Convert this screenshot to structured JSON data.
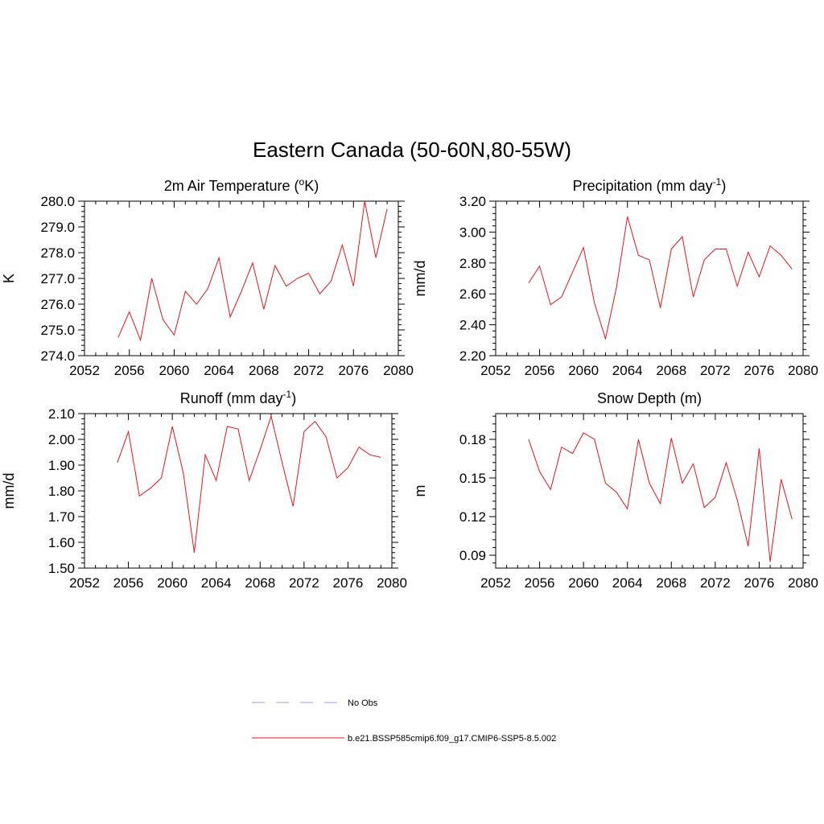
{
  "title": "Eastern Canada (50-60N,80-55W)",
  "line_color": "#e8141b",
  "obs_color": "#9a9af0",
  "legend": {
    "obs_label": "No Obs",
    "model_label": "b.e21.BSSP585cmip6.f09_g17.CMIP6-SSP5-8.5.002"
  },
  "chart_data": [
    {
      "type": "line",
      "title_pre": "2m Air Temperature (",
      "title_sup": "o",
      "title_post": "K)",
      "ylabel": "K",
      "xlim": [
        2052,
        2080
      ],
      "ylim": [
        274.0,
        280.0
      ],
      "xticks": [
        2052,
        2056,
        2060,
        2064,
        2068,
        2072,
        2076,
        2080
      ],
      "yticks": [
        274.0,
        275.0,
        276.0,
        277.0,
        278.0,
        279.0,
        280.0
      ],
      "ytick_decimals": 1,
      "x": [
        2055,
        2056,
        2057,
        2058,
        2059,
        2060,
        2061,
        2062,
        2063,
        2064,
        2065,
        2066,
        2067,
        2068,
        2069,
        2070,
        2071,
        2072,
        2073,
        2074,
        2075,
        2076,
        2077,
        2078,
        2079
      ],
      "series": [
        {
          "values": [
            274.7,
            275.7,
            274.6,
            277.0,
            275.4,
            274.8,
            276.5,
            276.0,
            276.6,
            277.8,
            275.5,
            276.5,
            277.6,
            275.8,
            277.5,
            276.7,
            277.0,
            277.2,
            276.4,
            276.9,
            278.3,
            276.7,
            280.0,
            277.8,
            279.7
          ]
        }
      ]
    },
    {
      "type": "line",
      "title_pre": "Precipitation (mm day",
      "title_sup": "-1",
      "title_post": ")",
      "ylabel": "mm/d",
      "xlim": [
        2052,
        2080
      ],
      "ylim": [
        2.2,
        3.2
      ],
      "xticks": [
        2052,
        2056,
        2060,
        2064,
        2068,
        2072,
        2076,
        2080
      ],
      "yticks": [
        2.2,
        2.4,
        2.6,
        2.8,
        3.0,
        3.2
      ],
      "ytick_decimals": 2,
      "x": [
        2055,
        2056,
        2057,
        2058,
        2059,
        2060,
        2061,
        2062,
        2063,
        2064,
        2065,
        2066,
        2067,
        2068,
        2069,
        2070,
        2071,
        2072,
        2073,
        2074,
        2075,
        2076,
        2077,
        2078,
        2079
      ],
      "series": [
        {
          "values": [
            2.67,
            2.78,
            2.53,
            2.58,
            2.74,
            2.9,
            2.54,
            2.31,
            2.64,
            3.1,
            2.85,
            2.82,
            2.51,
            2.89,
            2.97,
            2.58,
            2.82,
            2.89,
            2.89,
            2.65,
            2.87,
            2.71,
            2.91,
            2.85,
            2.76
          ]
        }
      ]
    },
    {
      "type": "line",
      "title_pre": "Runoff (mm day",
      "title_sup": "-1",
      "title_post": ")",
      "ylabel": "mm/d",
      "xlim": [
        2052,
        2080
      ],
      "ylim": [
        1.5,
        2.1
      ],
      "xticks": [
        2052,
        2056,
        2060,
        2064,
        2068,
        2072,
        2076,
        2080
      ],
      "yticks": [
        1.5,
        1.6,
        1.7,
        1.8,
        1.9,
        2.0,
        2.1
      ],
      "ytick_decimals": 2,
      "x": [
        2055,
        2056,
        2057,
        2058,
        2059,
        2060,
        2061,
        2062,
        2063,
        2064,
        2065,
        2066,
        2067,
        2068,
        2069,
        2070,
        2071,
        2072,
        2073,
        2074,
        2075,
        2076,
        2077,
        2078,
        2079
      ],
      "series": [
        {
          "values": [
            1.91,
            2.03,
            1.78,
            1.81,
            1.85,
            2.05,
            1.87,
            1.56,
            1.94,
            1.84,
            2.05,
            2.04,
            1.84,
            1.96,
            2.09,
            1.91,
            1.74,
            2.03,
            2.07,
            2.01,
            1.85,
            1.89,
            1.97,
            1.94,
            1.93
          ]
        }
      ]
    },
    {
      "type": "line",
      "title_pre": "Snow Depth (m)",
      "title_sup": "",
      "title_post": "",
      "ylabel": "m",
      "xlim": [
        2052,
        2080
      ],
      "ylim": [
        0.08,
        0.2
      ],
      "xticks": [
        2052,
        2056,
        2060,
        2064,
        2068,
        2072,
        2076,
        2080
      ],
      "yticks": [
        0.09,
        0.12,
        0.15,
        0.18
      ],
      "ytick_decimals": 2,
      "x": [
        2055,
        2056,
        2057,
        2058,
        2059,
        2060,
        2061,
        2062,
        2063,
        2064,
        2065,
        2066,
        2067,
        2068,
        2069,
        2070,
        2071,
        2072,
        2073,
        2074,
        2075,
        2076,
        2077,
        2078,
        2079
      ],
      "series": [
        {
          "values": [
            0.18,
            0.155,
            0.141,
            0.174,
            0.169,
            0.185,
            0.18,
            0.146,
            0.139,
            0.126,
            0.18,
            0.146,
            0.13,
            0.181,
            0.146,
            0.161,
            0.127,
            0.135,
            0.162,
            0.133,
            0.097,
            0.173,
            0.085,
            0.149,
            0.118
          ]
        }
      ]
    }
  ]
}
